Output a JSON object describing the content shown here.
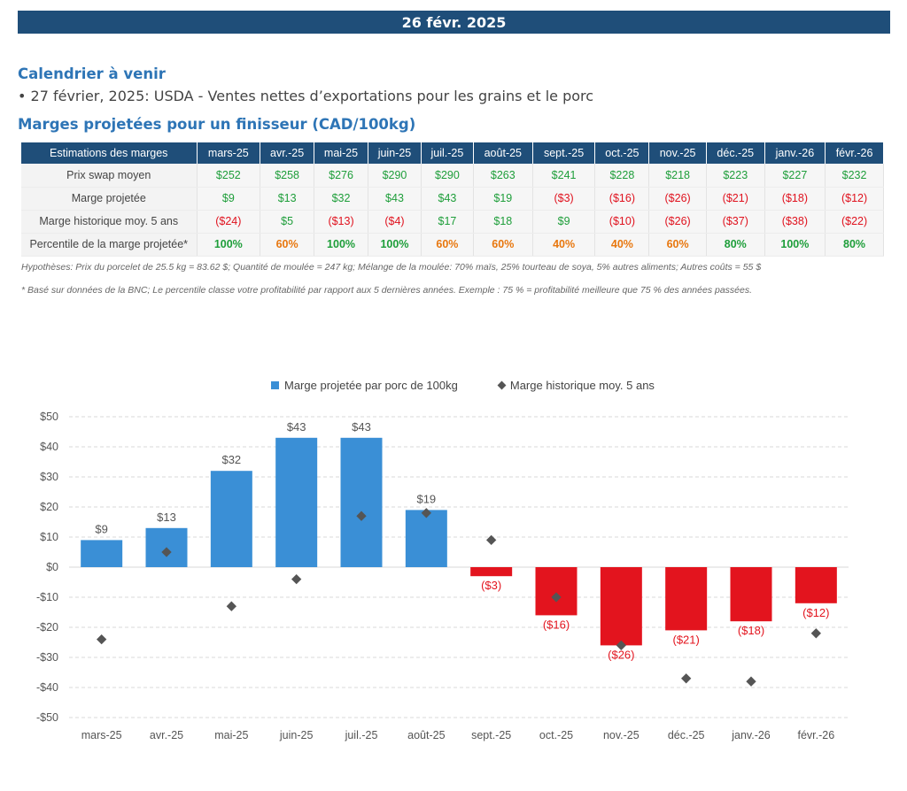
{
  "header": {
    "date": "26 févr. 2025"
  },
  "calendar": {
    "title": "Calendrier à venir",
    "item": "• 27 février, 2025: USDA - Ventes nettes d’exportations pour les grains et le porc"
  },
  "margins": {
    "title": "Marges projetées pour un finisseur (CAD/100kg)",
    "corner_header": "Estimations des marges",
    "months": [
      "mars-25",
      "avr.-25",
      "mai-25",
      "juin-25",
      "juil.-25",
      "août-25",
      "sept.-25",
      "oct.-25",
      "nov.-25",
      "déc.-25",
      "janv.-26",
      "févr.-26"
    ],
    "rows": [
      {
        "label": "Prix swap moyen",
        "values": [
          "$252",
          "$258",
          "$276",
          "$290",
          "$290",
          "$263",
          "$241",
          "$228",
          "$218",
          "$223",
          "$227",
          "$232"
        ]
      },
      {
        "label": "Marge projetée",
        "values": [
          "$9",
          "$13",
          "$32",
          "$43",
          "$43",
          "$19",
          "($3)",
          "($16)",
          "($26)",
          "($21)",
          "($18)",
          "($12)"
        ]
      },
      {
        "label": "Marge historique moy. 5 ans",
        "values": [
          "($24)",
          "$5",
          "($13)",
          "($4)",
          "$17",
          "$18",
          "$9",
          "($10)",
          "($26)",
          "($37)",
          "($38)",
          "($22)"
        ]
      },
      {
        "label": "Percentile de la marge projetée*",
        "values": [
          "100%",
          "60%",
          "100%",
          "100%",
          "60%",
          "60%",
          "40%",
          "40%",
          "60%",
          "80%",
          "100%",
          "80%"
        ]
      }
    ],
    "note_hypotheses": "Hypothèses: Prix du porcelet de 25.5 kg = 83.62 $; Quantité de moulée = 247 kg; Mélange de la moulée: 70% maïs, 25% tourteau de soya, 5% autres aliments; Autres coûts = 55 $",
    "note_percentile": "* Basé sur données de la BNC; Le percentile classe votre profitabilité par rapport aux 5 dernières années. Exemple : 75 % = profitabilité meilleure que 75 % des années passées."
  },
  "colors": {
    "banner": "#1f4e79",
    "bar_positive": "#3a8fd6",
    "bar_negative": "#e3141e",
    "marker": "#555555",
    "positive_text": "#1e9e3a",
    "negative_text": "#e0121e",
    "percentile_orange": "#e8770e"
  },
  "chart_data": {
    "type": "bar",
    "categories": [
      "mars-25",
      "avr.-25",
      "mai-25",
      "juin-25",
      "juil.-25",
      "août-25",
      "sept.-25",
      "oct.-25",
      "nov.-25",
      "déc.-25",
      "janv.-26",
      "févr.-26"
    ],
    "series": [
      {
        "name": "Marge projetée par porc de 100kg",
        "type": "bar",
        "values": [
          9,
          13,
          32,
          43,
          43,
          19,
          -3,
          -16,
          -26,
          -21,
          -18,
          -12
        ],
        "labels": [
          "$9",
          "$13",
          "$32",
          "$43",
          "$43",
          "$19",
          "($3)",
          "($16)",
          "($26)",
          "($21)",
          "($18)",
          "($12)"
        ]
      },
      {
        "name": "Marge historique moy. 5 ans",
        "type": "scatter",
        "values": [
          -24,
          5,
          -13,
          -4,
          17,
          18,
          9,
          -10,
          -26,
          -37,
          -38,
          -22
        ]
      }
    ],
    "ylim": [
      -50,
      50
    ],
    "yticks": [
      50,
      40,
      30,
      20,
      10,
      0,
      -10,
      -20,
      -30,
      -40,
      -50
    ],
    "ytick_labels": [
      "$50",
      "$40",
      "$30",
      "$20",
      "$10",
      "$0",
      "-$10",
      "-$20",
      "-$30",
      "-$40",
      "-$50"
    ],
    "grid": true,
    "legend_position": "top"
  }
}
